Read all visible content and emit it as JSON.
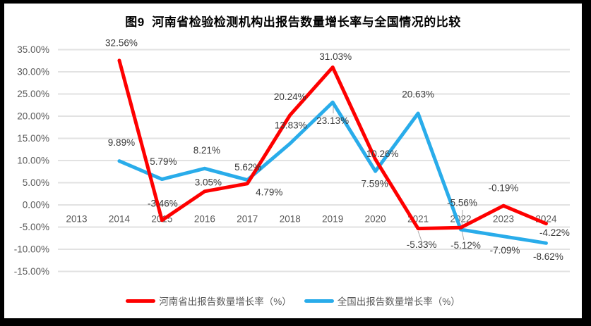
{
  "chart_data": {
    "type": "line",
    "title": "图9  河南省检验检测机构出报告数量增长率与全国情况的比较",
    "categories": [
      "2013",
      "2014",
      "2015",
      "2016",
      "2017",
      "2018",
      "2019",
      "2020",
      "2021",
      "2022",
      "2023",
      "2024"
    ],
    "series": [
      {
        "name": "河南省出报告数量增长率（%）",
        "color": "#FE0000",
        "values": [
          null,
          32.56,
          -3.46,
          3.05,
          4.79,
          20.24,
          31.03,
          10.26,
          -5.33,
          -5.12,
          -0.19,
          -4.22
        ],
        "labels": [
          "",
          "32.56%",
          "-3.46%",
          "3.05%",
          "4.79%",
          "20.24%",
          "31.03%",
          "10.26%",
          "-5.33%",
          "-5.12%",
          "-0.19%",
          "-4.22%"
        ]
      },
      {
        "name": "全国出报告数量增长率（%）",
        "color": "#29ACEA",
        "values": [
          null,
          9.89,
          5.79,
          8.21,
          5.62,
          13.83,
          23.13,
          7.59,
          20.63,
          -5.56,
          -7.09,
          -8.62
        ],
        "labels": [
          "",
          "9.89%",
          "5.79%",
          "8.21%",
          "5.62%",
          "13.83%",
          "23.13%",
          "7.59%",
          "20.63%",
          "-5.56%",
          "-7.09%",
          "-8.62%"
        ]
      }
    ],
    "y_axis": {
      "tick_labels": [
        "35.00%",
        "30.00%",
        "25.00%",
        "20.00%",
        "15.00%",
        "10.00%",
        "5.00%",
        "0.00%",
        "-5.00%",
        "-10.00%",
        "-15.00%"
      ],
      "tick_values": [
        35,
        30,
        25,
        20,
        15,
        10,
        5,
        0,
        -5,
        -10,
        -15
      ],
      "min": -15,
      "max": 35
    },
    "grid": true,
    "legend_position": "bottom"
  },
  "colors": {
    "grid": "#E2E2E2",
    "axis_text": "#595959",
    "data_label_text": "#3A3A3A",
    "leader_line": "#A6A6A6",
    "frame_border": "#000000",
    "background": "#FFFFFF"
  }
}
